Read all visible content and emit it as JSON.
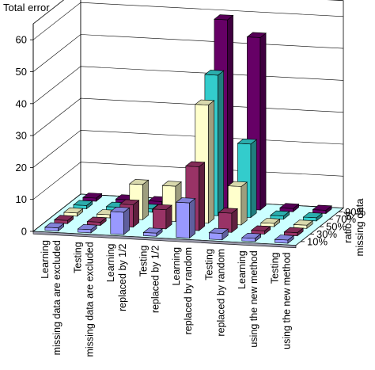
{
  "chart_data": {
    "type": "bar",
    "title": "",
    "zlabel": "Total error",
    "zticks": [
      0,
      10,
      20,
      30,
      40,
      50,
      60
    ],
    "zlim": [
      0,
      65
    ],
    "categories": [
      [
        "Learning",
        "missing data are excluded"
      ],
      [
        "Testing",
        "missing data are excluded"
      ],
      [
        "Learning",
        "replaced by 1/2"
      ],
      [
        "Testing",
        "replaced by 1/2"
      ],
      [
        "Learning",
        "replaced by random"
      ],
      [
        "Testing",
        "replaced by random"
      ],
      [
        "Learning",
        "using the new method"
      ],
      [
        "Testing",
        "using the new method"
      ]
    ],
    "depth_axis_label": [
      "ratio of",
      "missing data"
    ],
    "series": [
      {
        "name": "10%",
        "color": "#9999ff",
        "values": [
          1,
          1,
          7,
          1,
          11,
          2,
          1,
          1
        ]
      },
      {
        "name": "30%",
        "color": "#993366",
        "values": [
          1,
          1,
          7,
          6,
          20,
          6,
          1,
          1
        ]
      },
      {
        "name": "50%",
        "color": "#ffffcc",
        "values": [
          1,
          1,
          11,
          11,
          37,
          12,
          1,
          1
        ]
      },
      {
        "name": "70%",
        "color": "#33cccc",
        "values": [
          1,
          1,
          1,
          1,
          44,
          23,
          1,
          1
        ]
      },
      {
        "name": "90%",
        "color": "#660066",
        "values": [
          1,
          1,
          1,
          1,
          59,
          54,
          1,
          1
        ]
      }
    ],
    "grid": true,
    "floor_color": "#ccffff"
  }
}
